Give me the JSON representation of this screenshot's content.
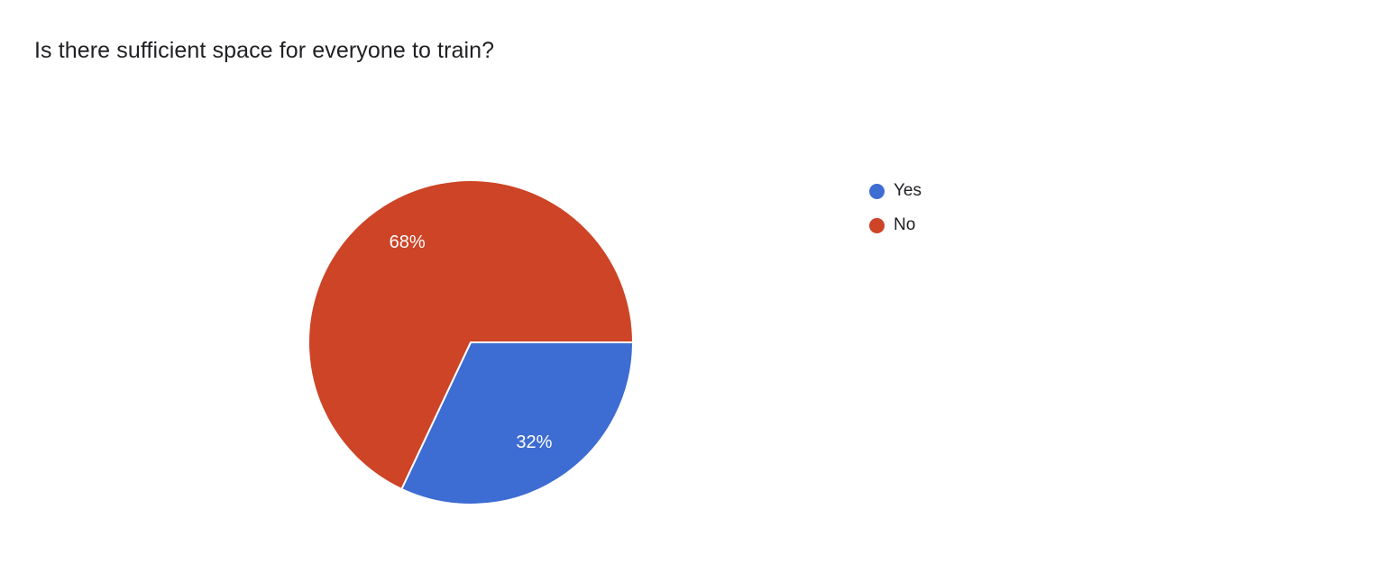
{
  "title": "Is there sufficient space for everyone to train?",
  "chart_data": {
    "type": "pie",
    "title": "Is there sufficient space for everyone to train?",
    "labels": [
      "Yes",
      "No"
    ],
    "values": [
      32,
      68
    ],
    "value_labels": [
      "32%",
      "68%"
    ],
    "colors": [
      "#3d6cd2",
      "#cd4427"
    ],
    "slice_border_color": "#ffffff",
    "label_color": "#ffffff",
    "start_angle_deg": 0,
    "direction": "clockwise",
    "legend_position": "right",
    "grid": false
  }
}
